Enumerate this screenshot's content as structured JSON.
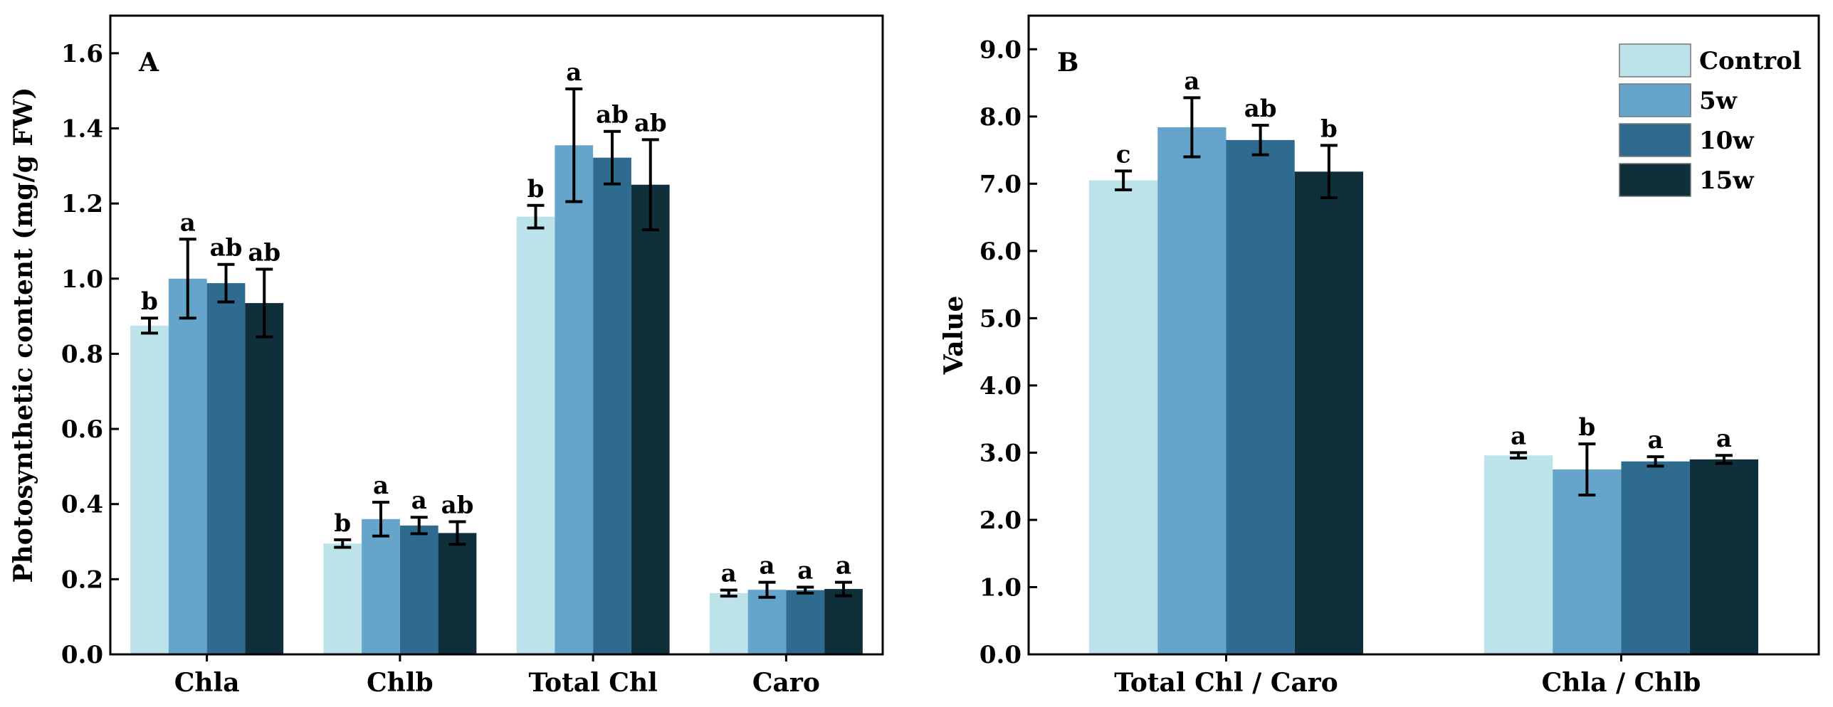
{
  "chart_data": [
    {
      "type": "bar",
      "panel": "A",
      "categories": [
        "Chla",
        "Chlb",
        "Total Chl",
        "Caro"
      ],
      "ylabel": "Photosynthetic content (mg/g FW)",
      "xlabel": "",
      "ylim": [
        0,
        1.7
      ],
      "yticks": [
        0.0,
        0.2,
        0.4,
        0.6,
        0.8,
        1.0,
        1.2,
        1.4,
        1.6
      ],
      "ytick_labels": [
        "0.0",
        "0.2",
        "0.4",
        "0.6",
        "0.8",
        "1.0",
        "1.2",
        "1.4",
        "1.6"
      ],
      "series": [
        {
          "name": "Control",
          "values": [
            0.875,
            0.295,
            1.165,
            0.163
          ],
          "errors": [
            0.02,
            0.01,
            0.03,
            0.008
          ],
          "letters": [
            "b",
            "b",
            "b",
            "a"
          ]
        },
        {
          "name": "5w",
          "values": [
            1.0,
            0.36,
            1.355,
            0.172
          ],
          "errors": [
            0.105,
            0.045,
            0.15,
            0.02
          ],
          "letters": [
            "a",
            "a",
            "a",
            "a"
          ]
        },
        {
          "name": "10w",
          "values": [
            0.988,
            0.343,
            1.322,
            0.171
          ],
          "errors": [
            0.05,
            0.022,
            0.07,
            0.008
          ],
          "letters": [
            "ab",
            "a",
            "ab",
            "a"
          ]
        },
        {
          "name": "15w",
          "values": [
            0.935,
            0.323,
            1.25,
            0.174
          ],
          "errors": [
            0.09,
            0.03,
            0.12,
            0.018
          ],
          "letters": [
            "ab",
            "ab",
            "ab",
            "a"
          ]
        }
      ]
    },
    {
      "type": "bar",
      "panel": "B",
      "categories": [
        "Total Chl / Caro",
        "Chla / Chlb"
      ],
      "ylabel": "Value",
      "xlabel": "",
      "ylim": [
        0,
        9.5
      ],
      "yticks": [
        0,
        1,
        2,
        3,
        4,
        5,
        6,
        7,
        8,
        9
      ],
      "ytick_labels": [
        "0.0",
        "1.0",
        "2.0",
        "3.0",
        "4.0",
        "5.0",
        "6.0",
        "7.0",
        "8.0",
        "9.0"
      ],
      "legend": {
        "position": "top-right",
        "entries": [
          "Control",
          "5w",
          "10w",
          "15w"
        ]
      },
      "series": [
        {
          "name": "Control",
          "values": [
            7.05,
            2.96
          ],
          "errors": [
            0.14,
            0.04
          ],
          "letters": [
            "c",
            "a"
          ]
        },
        {
          "name": "5w",
          "values": [
            7.84,
            2.75
          ],
          "errors": [
            0.44,
            0.38
          ],
          "letters": [
            "a",
            "b"
          ]
        },
        {
          "name": "10w",
          "values": [
            7.65,
            2.87
          ],
          "errors": [
            0.22,
            0.07
          ],
          "letters": [
            "ab",
            "a"
          ]
        },
        {
          "name": "15w",
          "values": [
            7.18,
            2.9
          ],
          "errors": [
            0.39,
            0.06
          ],
          "letters": [
            "b",
            "a"
          ]
        }
      ]
    }
  ],
  "colors": {
    "Control": "#bde3ea",
    "5w": "#66a5cb",
    "10w": "#2f6b8e",
    "15w": "#0f2f3b",
    "axis": "#000000"
  }
}
